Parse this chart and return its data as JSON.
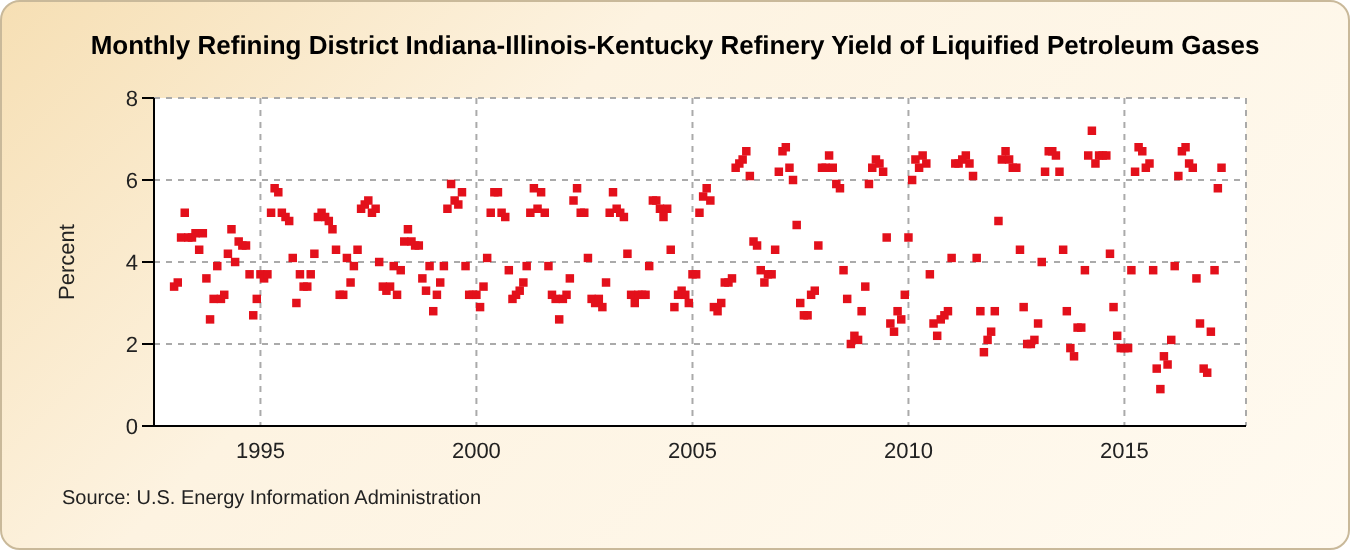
{
  "chart_data": {
    "type": "scatter",
    "title": "Monthly Refining District Indiana-Illinois-Kentucky Refinery Yield of Liquified Petroleum Gases",
    "ylabel": "Percent",
    "annotations": [
      "Source: U.S. Energy Information Administration"
    ],
    "marker": "square",
    "grid": true,
    "legend": false,
    "xlim": [
      "1992-07-15",
      "2017-10-25"
    ],
    "xticks": [
      "1995",
      "2000",
      "2005",
      "2010",
      "2015"
    ],
    "ylim": [
      0,
      8
    ],
    "yticks": [
      0,
      2,
      4,
      6,
      8
    ],
    "x": [
      "1993-01",
      "1993-02",
      "1993-03",
      "1993-04",
      "1993-05",
      "1993-06",
      "1993-07",
      "1993-08",
      "1993-09",
      "1993-10",
      "1993-11",
      "1993-12",
      "1994-01",
      "1994-02",
      "1994-03",
      "1994-04",
      "1994-05",
      "1994-06",
      "1994-07",
      "1994-08",
      "1994-09",
      "1994-10",
      "1994-11",
      "1994-12",
      "1995-01",
      "1995-02",
      "1995-03",
      "1995-04",
      "1995-05",
      "1995-06",
      "1995-07",
      "1995-08",
      "1995-09",
      "1995-10",
      "1995-11",
      "1995-12",
      "1996-01",
      "1996-02",
      "1996-03",
      "1996-04",
      "1996-05",
      "1996-06",
      "1996-07",
      "1996-08",
      "1996-09",
      "1996-10",
      "1996-11",
      "1996-12",
      "1997-01",
      "1997-02",
      "1997-03",
      "1997-04",
      "1997-05",
      "1997-06",
      "1997-07",
      "1997-08",
      "1997-09",
      "1997-10",
      "1997-11",
      "1997-12",
      "1998-01",
      "1998-02",
      "1998-03",
      "1998-04",
      "1998-05",
      "1998-06",
      "1998-07",
      "1998-08",
      "1998-09",
      "1998-10",
      "1998-11",
      "1998-12",
      "1999-01",
      "1999-02",
      "1999-03",
      "1999-04",
      "1999-05",
      "1999-06",
      "1999-07",
      "1999-08",
      "1999-09",
      "1999-10",
      "1999-11",
      "1999-12",
      "2000-01",
      "2000-02",
      "2000-03",
      "2000-04",
      "2000-05",
      "2000-06",
      "2000-07",
      "2000-08",
      "2000-09",
      "2000-10",
      "2000-11",
      "2000-12",
      "2001-01",
      "2001-02",
      "2001-03",
      "2001-04",
      "2001-05",
      "2001-06",
      "2001-07",
      "2001-08",
      "2001-09",
      "2001-10",
      "2001-11",
      "2001-12",
      "2002-01",
      "2002-02",
      "2002-03",
      "2002-04",
      "2002-05",
      "2002-06",
      "2002-07",
      "2002-08",
      "2002-09",
      "2002-10",
      "2002-11",
      "2002-12",
      "2003-01",
      "2003-02",
      "2003-03",
      "2003-04",
      "2003-05",
      "2003-06",
      "2003-07",
      "2003-08",
      "2003-09",
      "2003-10",
      "2003-11",
      "2003-12",
      "2004-01",
      "2004-02",
      "2004-03",
      "2004-04",
      "2004-05",
      "2004-06",
      "2004-07",
      "2004-08",
      "2004-09",
      "2004-10",
      "2004-11",
      "2004-12",
      "2005-01",
      "2005-02",
      "2005-03",
      "2005-04",
      "2005-05",
      "2005-06",
      "2005-07",
      "2005-08",
      "2005-09",
      "2005-10",
      "2005-11",
      "2005-12",
      "2006-01",
      "2006-02",
      "2006-03",
      "2006-04",
      "2006-05",
      "2006-06",
      "2006-07",
      "2006-08",
      "2006-09",
      "2006-10",
      "2006-11",
      "2006-12",
      "2007-01",
      "2007-02",
      "2007-03",
      "2007-04",
      "2007-05",
      "2007-06",
      "2007-07",
      "2007-08",
      "2007-09",
      "2007-10",
      "2007-11",
      "2007-12",
      "2008-01",
      "2008-02",
      "2008-03",
      "2008-04",
      "2008-05",
      "2008-06",
      "2008-07",
      "2008-08",
      "2008-09",
      "2008-10",
      "2008-11",
      "2008-12",
      "2009-01",
      "2009-02",
      "2009-03",
      "2009-04",
      "2009-05",
      "2009-06",
      "2009-07",
      "2009-08",
      "2009-09",
      "2009-10",
      "2009-11",
      "2009-12",
      "2010-01",
      "2010-02",
      "2010-03",
      "2010-04",
      "2010-05",
      "2010-06",
      "2010-07",
      "2010-08",
      "2010-09",
      "2010-10",
      "2010-11",
      "2010-12",
      "2011-01",
      "2011-02",
      "2011-03",
      "2011-04",
      "2011-05",
      "2011-06",
      "2011-07",
      "2011-08",
      "2011-09",
      "2011-10",
      "2011-11",
      "2011-12",
      "2012-01",
      "2012-02",
      "2012-03",
      "2012-04",
      "2012-05",
      "2012-06",
      "2012-07",
      "2012-08",
      "2012-09",
      "2012-10",
      "2012-11",
      "2012-12",
      "2013-01",
      "2013-02",
      "2013-03",
      "2013-04",
      "2013-05",
      "2013-06",
      "2013-07",
      "2013-08",
      "2013-09",
      "2013-10",
      "2013-11",
      "2013-12",
      "2014-01",
      "2014-02",
      "2014-03",
      "2014-04",
      "2014-05",
      "2014-06",
      "2014-07",
      "2014-08",
      "2014-09",
      "2014-10",
      "2014-11",
      "2014-12",
      "2015-01",
      "2015-02",
      "2015-03",
      "2015-04",
      "2015-05",
      "2015-06",
      "2015-07",
      "2015-08",
      "2015-09",
      "2015-10",
      "2015-11",
      "2015-12",
      "2016-01",
      "2016-02",
      "2016-03",
      "2016-04",
      "2016-05",
      "2016-06",
      "2016-07",
      "2016-08",
      "2016-09",
      "2016-10",
      "2016-11",
      "2016-12",
      "2017-01",
      "2017-02",
      "2017-03",
      "2017-04"
    ],
    "series": [
      {
        "color": "#e3101b",
        "values": [
          3.4,
          3.5,
          4.6,
          5.2,
          4.6,
          4.6,
          4.7,
          4.3,
          4.7,
          3.6,
          2.6,
          3.1,
          3.9,
          3.1,
          3.2,
          4.2,
          4.8,
          4.0,
          4.5,
          4.4,
          4.4,
          3.7,
          2.7,
          3.1,
          3.7,
          3.6,
          3.7,
          5.2,
          5.8,
          5.7,
          5.2,
          5.1,
          5.0,
          4.1,
          3.0,
          3.7,
          3.4,
          3.4,
          3.7,
          4.2,
          5.1,
          5.2,
          5.1,
          5.0,
          4.8,
          4.3,
          3.2,
          3.2,
          4.1,
          3.5,
          3.9,
          4.3,
          5.3,
          5.4,
          5.5,
          5.2,
          5.3,
          4.0,
          3.4,
          3.3,
          3.4,
          3.9,
          3.2,
          3.8,
          4.5,
          4.8,
          4.5,
          4.4,
          4.4,
          3.6,
          3.3,
          3.9,
          2.8,
          3.2,
          3.5,
          3.9,
          5.3,
          5.9,
          5.5,
          5.4,
          5.7,
          3.9,
          3.2,
          3.2,
          3.2,
          2.9,
          3.4,
          4.1,
          5.2,
          5.7,
          5.7,
          5.2,
          5.1,
          3.8,
          3.1,
          3.2,
          3.3,
          3.5,
          3.9,
          5.2,
          5.8,
          5.3,
          5.7,
          5.2,
          3.9,
          3.2,
          3.1,
          2.6,
          3.1,
          3.2,
          3.6,
          5.5,
          5.8,
          5.2,
          5.2,
          4.1,
          3.1,
          3.0,
          3.1,
          2.9,
          3.5,
          5.2,
          5.7,
          5.3,
          5.2,
          5.1,
          4.2,
          3.2,
          3.0,
          3.2,
          3.2,
          3.2,
          3.9,
          5.5,
          5.5,
          5.3,
          5.1,
          5.3,
          4.3,
          2.9,
          3.2,
          3.3,
          3.2,
          3.0,
          3.7,
          3.7,
          5.2,
          5.6,
          5.8,
          5.5,
          2.9,
          2.8,
          3.0,
          3.5,
          3.5,
          3.6,
          6.3,
          6.4,
          6.5,
          6.7,
          6.1,
          4.5,
          4.4,
          3.8,
          3.5,
          3.7,
          3.7,
          4.3,
          6.2,
          6.7,
          6.8,
          6.3,
          6.0,
          4.9,
          3.0,
          2.7,
          2.7,
          3.2,
          3.3,
          4.4,
          6.3,
          6.3,
          6.6,
          6.3,
          5.9,
          5.8,
          3.8,
          3.1,
          2.0,
          2.2,
          2.1,
          2.8,
          3.4,
          5.9,
          6.3,
          6.5,
          6.4,
          6.2,
          4.6,
          2.5,
          2.3,
          2.8,
          2.6,
          3.2,
          4.6,
          6.0,
          6.5,
          6.3,
          6.6,
          6.4,
          3.7,
          2.5,
          2.2,
          2.6,
          2.7,
          2.8,
          4.1,
          6.4,
          6.4,
          6.5,
          6.6,
          6.4,
          6.1,
          4.1,
          2.8,
          1.8,
          2.1,
          2.3,
          2.8,
          5.0,
          6.5,
          6.7,
          6.5,
          6.3,
          6.3,
          4.3,
          2.9,
          2.0,
          2.0,
          2.1,
          2.5,
          4.0,
          6.2,
          6.7,
          6.7,
          6.6,
          6.2,
          4.3,
          2.8,
          1.9,
          1.7,
          2.4,
          2.4,
          3.8,
          6.6,
          7.2,
          6.4,
          6.6,
          6.6,
          6.6,
          4.2,
          2.9,
          2.2,
          1.9,
          1.9,
          1.9,
          3.8,
          6.2,
          6.8,
          6.7,
          6.3,
          6.4,
          3.8,
          1.4,
          0.9,
          1.7,
          1.5,
          2.1,
          3.9,
          6.1,
          6.7,
          6.8,
          6.4,
          6.3,
          3.6,
          2.5,
          1.4,
          1.3,
          2.3,
          3.8,
          5.8,
          6.3
        ]
      }
    ]
  }
}
